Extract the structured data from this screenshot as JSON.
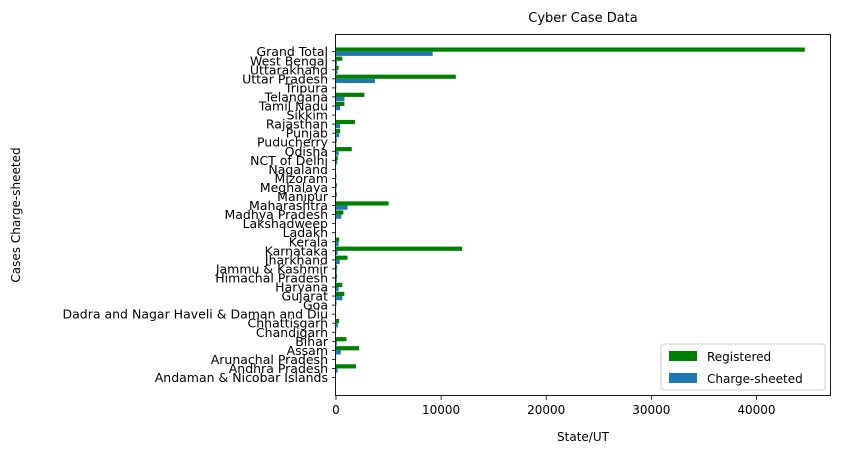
{
  "chart_data": {
    "type": "bar",
    "orientation": "horizontal",
    "title": "Cyber Case Data",
    "xlabel": "State/UT",
    "ylabel": "Cases Charge-sheeted",
    "xlim": [
      0,
      47000
    ],
    "xticks": [
      0,
      10000,
      20000,
      30000,
      40000
    ],
    "legend_placement": "lower-right",
    "grid": false,
    "categories": [
      "Andaman & Nicobar Islands",
      "Andhra Pradesh",
      "Arunachal Pradesh",
      "Assam",
      "Bihar",
      "Chandigarh",
      "Chhattisgarh",
      "Dadra and Nagar Haveli & Daman and Diu",
      "Goa",
      "Gujarat",
      "Haryana",
      "Himachal Pradesh",
      "Jammu & Kashmir",
      "Jharkhand",
      "Karnataka",
      "Kerala",
      "Ladakh",
      "Lakshadweep",
      "Madhya Pradesh",
      "Maharashtra",
      "Manipur",
      "Meghalaya",
      "Mizoram",
      "Nagaland",
      "NCT of Delhi",
      "Odisha",
      "Puducherry",
      "Punjab",
      "Rajasthan",
      "Sikkim",
      "Tamil Nadu",
      "Telangana",
      "Tripura",
      "Uttar Pradesh",
      "Uttarakhand",
      "West Bengal",
      "Grand Total"
    ],
    "series": [
      {
        "name": "Registered",
        "color": "#008000",
        "values": [
          5,
          1900,
          15,
          2200,
          1000,
          20,
          300,
          5,
          40,
          800,
          600,
          100,
          100,
          1100,
          12000,
          300,
          5,
          0,
          700,
          5000,
          80,
          80,
          30,
          5,
          170,
          1500,
          70,
          400,
          1800,
          0,
          800,
          2700,
          20,
          11400,
          250,
          600,
          44600
        ]
      },
      {
        "name": "Charge-sheeted",
        "color": "#1f77b4",
        "values": [
          3,
          150,
          5,
          450,
          80,
          5,
          180,
          2,
          10,
          600,
          250,
          80,
          80,
          350,
          150,
          250,
          2,
          0,
          500,
          1100,
          20,
          30,
          10,
          2,
          120,
          250,
          40,
          300,
          400,
          0,
          400,
          800,
          10,
          3700,
          150,
          100,
          9200
        ]
      }
    ]
  }
}
